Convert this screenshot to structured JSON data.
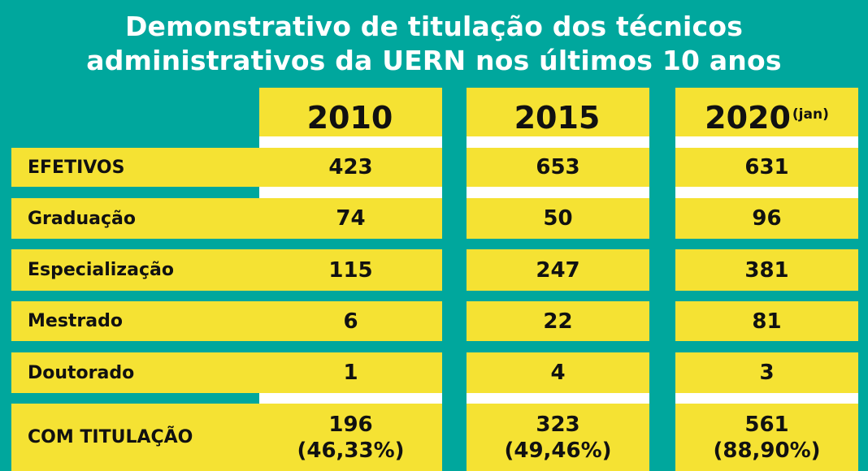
{
  "title": {
    "line1": "Demonstrativo de titulação dos técnicos",
    "line2": "administrativos da UERN nos últimos 10 anos"
  },
  "colors": {
    "background": "#00A79D",
    "cell": "#F5E233",
    "separator": "#FFFFFF",
    "title": "#FFFFFF",
    "text": "#111111"
  },
  "chart_data": {
    "type": "table",
    "title": "Demonstrativo de titulação dos técnicos administrativos da UERN nos últimos 10 anos",
    "columns": [
      {
        "year": "2010",
        "note": ""
      },
      {
        "year": "2015",
        "note": ""
      },
      {
        "year": "2020",
        "note": "(jan)"
      }
    ],
    "rows": [
      {
        "label": "EFETIVOS",
        "values": [
          "423",
          "653",
          "631"
        ]
      },
      {
        "label": "Graduação",
        "values": [
          "74",
          "50",
          "96"
        ]
      },
      {
        "label": "Especialização",
        "values": [
          "115",
          "247",
          "381"
        ]
      },
      {
        "label": "Mestrado",
        "values": [
          "6",
          "22",
          "81"
        ]
      },
      {
        "label": "Doutorado",
        "values": [
          "1",
          "4",
          "3"
        ]
      },
      {
        "label": "COM TITULAÇÃO",
        "values": [
          "196",
          "323",
          "561"
        ],
        "percentages": [
          "(46,33%)",
          "(49,46%)",
          "(88,90%)"
        ]
      }
    ]
  }
}
